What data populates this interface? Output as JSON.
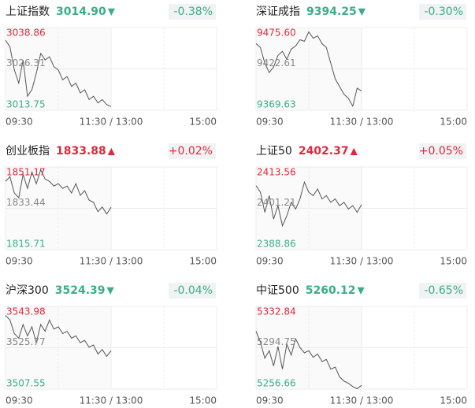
{
  "chart_data": [
    {
      "type": "line",
      "title": "上证指数",
      "price": "3014.90",
      "arrow": "▼",
      "change": "-0.38%",
      "change_color": "#3aae86",
      "color": "#555555",
      "x": [
        0,
        5,
        10,
        15,
        20,
        25,
        30,
        35,
        40,
        45,
        50,
        55,
        60,
        65,
        70,
        75,
        80,
        85,
        90,
        95,
        100,
        105,
        110,
        115,
        120
      ],
      "values": [
        3035,
        3033,
        3026,
        3022,
        3029,
        3018,
        3020,
        3025,
        3031,
        3029,
        3030,
        3027,
        3026,
        3023,
        3024,
        3021,
        3022,
        3019,
        3020,
        3017,
        3018,
        3016,
        3017,
        3015.5,
        3014.9
      ],
      "xlim": [
        0,
        240
      ],
      "xticks": [
        {
          "value": 0,
          "label": "09:30"
        },
        {
          "value": 120,
          "label": "11:30 / 13:00"
        },
        {
          "value": 240,
          "label": "15:00"
        }
      ],
      "ylim": [
        3013.75,
        3038.86
      ],
      "yticks": [
        3038.86,
        3026.31,
        3013.75
      ]
    },
    {
      "type": "line",
      "title": "深证成指",
      "price": "9394.25",
      "arrow": "▼",
      "change": "-0.30%",
      "change_color": "#3aae86",
      "color": "#555555",
      "x": [
        0,
        5,
        10,
        15,
        20,
        25,
        30,
        35,
        40,
        45,
        50,
        55,
        60,
        65,
        70,
        75,
        80,
        85,
        90,
        95,
        100,
        105,
        110,
        115,
        120
      ],
      "values": [
        9455,
        9450,
        9430,
        9418,
        9425,
        9440,
        9445,
        9435,
        9448,
        9452,
        9460,
        9458,
        9470,
        9462,
        9465,
        9455,
        9450,
        9430,
        9410,
        9400,
        9390,
        9385,
        9375,
        9398,
        9394.25
      ],
      "xlim": [
        0,
        240
      ],
      "xticks": [
        {
          "value": 0,
          "label": "09:30"
        },
        {
          "value": 120,
          "label": "11:30 / 13:00"
        },
        {
          "value": 240,
          "label": "15:00"
        }
      ],
      "ylim": [
        9369.63,
        9475.6
      ],
      "yticks": [
        {
          "value": 9475.6,
          "label": "9475.60"
        },
        9422.61,
        9369.63
      ]
    },
    {
      "type": "line",
      "title": "创业板指",
      "price": "1833.88",
      "arrow": "▲",
      "change": "+0.02%",
      "change_color": "#e0283c",
      "color": "#555555",
      "x": [
        0,
        5,
        10,
        15,
        20,
        25,
        30,
        35,
        40,
        45,
        50,
        55,
        60,
        65,
        70,
        75,
        80,
        85,
        90,
        95,
        100,
        105,
        110,
        115,
        120
      ],
      "values": [
        1845,
        1847,
        1840,
        1838,
        1848,
        1842,
        1849,
        1844,
        1850,
        1846,
        1845,
        1843,
        1844,
        1842,
        1843,
        1840,
        1844,
        1839,
        1841,
        1837,
        1836,
        1832,
        1834,
        1831,
        1833.88
      ],
      "xlim": [
        0,
        240
      ],
      "xticks": [
        {
          "value": 0,
          "label": "09:30"
        },
        {
          "value": 120,
          "label": "11:30 / 13:00"
        },
        {
          "value": 240,
          "label": "15:00"
        }
      ],
      "ylim": [
        1815.71,
        1851.17
      ],
      "yticks": [
        1851.17,
        1833.44,
        1815.71
      ]
    },
    {
      "type": "line",
      "title": "上证50",
      "price": "2402.37",
      "arrow": "▲",
      "change": "+0.05%",
      "change_color": "#e0283c",
      "color": "#555555",
      "x": [
        0,
        5,
        10,
        15,
        20,
        25,
        30,
        35,
        40,
        45,
        50,
        55,
        60,
        65,
        70,
        75,
        80,
        85,
        90,
        95,
        100,
        105,
        110,
        115,
        120
      ],
      "values": [
        2408,
        2406,
        2400,
        2405,
        2398,
        2402,
        2396,
        2399,
        2403,
        2401,
        2404,
        2409,
        2406,
        2405,
        2407,
        2404,
        2405,
        2403,
        2404,
        2402,
        2403,
        2401,
        2402,
        2400,
        2402.37
      ],
      "xlim": [
        0,
        240
      ],
      "xticks": [
        {
          "value": 0,
          "label": "09:30"
        },
        {
          "value": 120,
          "label": "11:30 / 13:00"
        },
        {
          "value": 240,
          "label": "15:00"
        }
      ],
      "ylim": [
        2388.86,
        2413.56
      ],
      "yticks": [
        2413.56,
        2401.21,
        2388.86
      ]
    },
    {
      "type": "line",
      "title": "沪深300",
      "price": "3524.39",
      "arrow": "▼",
      "change": "-0.04%",
      "change_color": "#3aae86",
      "color": "#555555",
      "x": [
        0,
        5,
        10,
        15,
        20,
        25,
        30,
        35,
        40,
        45,
        50,
        55,
        60,
        65,
        70,
        75,
        80,
        85,
        90,
        95,
        100,
        105,
        110,
        115,
        120
      ],
      "values": [
        3540,
        3538,
        3532,
        3530,
        3536,
        3531,
        3535,
        3528,
        3536,
        3533,
        3538,
        3534,
        3535,
        3532,
        3533,
        3530,
        3531,
        3528,
        3529,
        3526,
        3527,
        3523,
        3525,
        3522,
        3524.39
      ],
      "xlim": [
        0,
        240
      ],
      "xticks": [
        {
          "value": 0,
          "label": "09:30"
        },
        {
          "value": 120,
          "label": "11:30 / 13:00"
        },
        {
          "value": 240,
          "label": "15:00"
        }
      ],
      "ylim": [
        3507.55,
        3543.98
      ],
      "yticks": [
        3543.98,
        3525.77,
        3507.55
      ]
    },
    {
      "type": "line",
      "title": "中证500",
      "price": "5260.12",
      "arrow": "▼",
      "change": "-0.65%",
      "change_color": "#3aae86",
      "color": "#555555",
      "x": [
        0,
        5,
        10,
        15,
        20,
        25,
        30,
        35,
        40,
        45,
        50,
        55,
        60,
        65,
        70,
        75,
        80,
        85,
        90,
        95,
        100,
        105,
        110,
        115,
        120
      ],
      "values": [
        5310,
        5300,
        5285,
        5292,
        5278,
        5296,
        5275,
        5298,
        5288,
        5303,
        5295,
        5290,
        5292,
        5286,
        5289,
        5282,
        5284,
        5275,
        5277,
        5268,
        5264,
        5262,
        5259,
        5257,
        5260.12
      ],
      "xlim": [
        0,
        240
      ],
      "xticks": [
        {
          "value": 0,
          "label": "09:30"
        },
        {
          "value": 120,
          "label": "11:30 / 13:00"
        },
        {
          "value": 240,
          "label": "15:00"
        }
      ],
      "ylim": [
        5256.66,
        5332.84
      ],
      "yticks": [
        5332.84,
        5294.75,
        5256.66
      ]
    }
  ]
}
